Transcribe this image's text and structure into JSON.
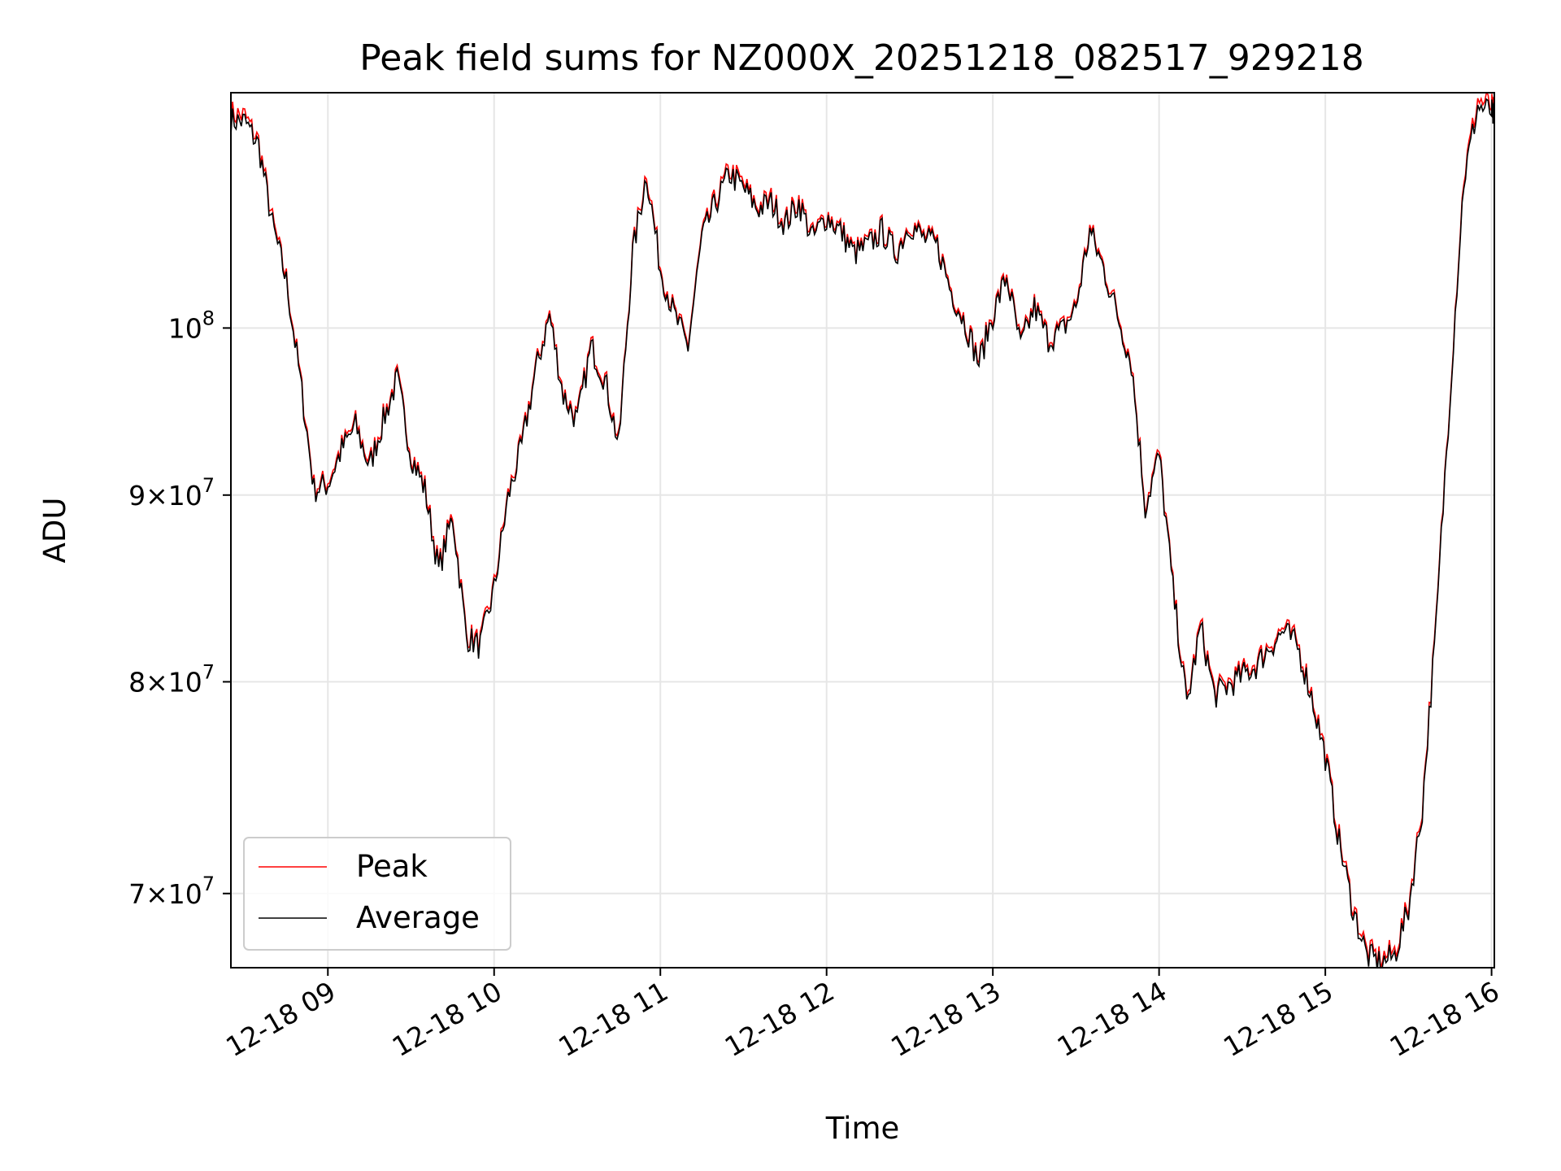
{
  "chart_data": {
    "type": "line",
    "title": "Peak field sums for NZ000X_20251218_082517_929218",
    "xlabel": "Time",
    "ylabel": "ADU",
    "yscale": "log",
    "grid": true,
    "legend_position": "lower-left",
    "xlim": [
      "2025-12-18 08:25",
      "2025-12-18 16:01"
    ],
    "ylim": [
      66800000,
      116000000
    ],
    "x_ticks": [
      "12-18 09",
      "12-18 10",
      "12-18 11",
      "12-18 12",
      "12-18 13",
      "12-18 14",
      "12-18 15",
      "12-18 16"
    ],
    "y_ticks": [
      {
        "value": 70000000,
        "base": "7",
        "sep": "×",
        "exp_base": "10",
        "exp": "7"
      },
      {
        "value": 80000000,
        "base": "8",
        "sep": "×",
        "exp_base": "10",
        "exp": "7"
      },
      {
        "value": 90000000,
        "base": "9",
        "sep": "×",
        "exp_base": "10",
        "exp": "7"
      },
      {
        "value": 100000000,
        "base": "",
        "sep": "",
        "exp_base": "10",
        "exp": "8"
      }
    ],
    "colors": {
      "Peak": "#ff0000",
      "Average": "#000000"
    },
    "series": [
      {
        "name": "Peak",
        "color": "#ff0000",
        "points": [
          [
            "2025-12-18 08:25",
            114.5
          ],
          [
            "2025-12-18 08:30",
            114.3
          ],
          [
            "2025-12-18 08:35",
            112.5
          ],
          [
            "2025-12-18 08:40",
            107.0
          ],
          [
            "2025-12-18 08:45",
            103.2
          ],
          [
            "2025-12-18 08:50",
            97.0
          ],
          [
            "2025-12-18 08:55",
            90.5
          ],
          [
            "2025-12-18 09:00",
            90.8
          ],
          [
            "2025-12-18 09:05",
            92.8
          ],
          [
            "2025-12-18 09:10",
            94.2
          ],
          [
            "2025-12-18 09:15",
            91.8
          ],
          [
            "2025-12-18 09:20",
            94.5
          ],
          [
            "2025-12-18 09:25",
            97.0
          ],
          [
            "2025-12-18 09:30",
            92.5
          ],
          [
            "2025-12-18 09:35",
            90.5
          ],
          [
            "2025-12-18 09:40",
            86.0
          ],
          [
            "2025-12-18 09:45",
            89.0
          ],
          [
            "2025-12-18 09:50",
            82.5
          ],
          [
            "2025-12-18 09:55",
            82.0
          ],
          [
            "2025-12-18 10:00",
            85.0
          ],
          [
            "2025-12-18 10:05",
            90.0
          ],
          [
            "2025-12-18 10:10",
            93.0
          ],
          [
            "2025-12-18 10:15",
            97.5
          ],
          [
            "2025-12-18 10:20",
            101.0
          ],
          [
            "2025-12-18 10:25",
            96.0
          ],
          [
            "2025-12-18 10:30",
            94.5
          ],
          [
            "2025-12-18 10:35",
            99.0
          ],
          [
            "2025-12-18 10:40",
            97.0
          ],
          [
            "2025-12-18 10:45",
            93.0
          ],
          [
            "2025-12-18 10:50",
            105.0
          ],
          [
            "2025-12-18 10:55",
            110.5
          ],
          [
            "2025-12-18 11:00",
            104.0
          ],
          [
            "2025-12-18 11:05",
            101.0
          ],
          [
            "2025-12-18 11:10",
            99.0
          ],
          [
            "2025-12-18 11:15",
            106.0
          ],
          [
            "2025-12-18 11:20",
            108.5
          ],
          [
            "2025-12-18 11:25",
            110.5
          ],
          [
            "2025-12-18 11:30",
            109.5
          ],
          [
            "2025-12-18 11:35",
            108.0
          ],
          [
            "2025-12-18 11:40",
            108.5
          ],
          [
            "2025-12-18 11:45",
            107.0
          ],
          [
            "2025-12-18 11:50",
            108.5
          ],
          [
            "2025-12-18 11:55",
            106.0
          ],
          [
            "2025-12-18 12:00",
            107.5
          ],
          [
            "2025-12-18 12:05",
            106.5
          ],
          [
            "2025-12-18 12:10",
            105.0
          ],
          [
            "2025-12-18 12:15",
            105.5
          ],
          [
            "2025-12-18 12:20",
            106.5
          ],
          [
            "2025-12-18 12:25",
            105.0
          ],
          [
            "2025-12-18 12:30",
            107.0
          ],
          [
            "2025-12-18 12:35",
            106.0
          ],
          [
            "2025-12-18 12:40",
            105.5
          ],
          [
            "2025-12-18 12:45",
            102.5
          ],
          [
            "2025-12-18 12:50",
            100.5
          ],
          [
            "2025-12-18 12:55",
            98.0
          ],
          [
            "2025-12-18 13:00",
            101.0
          ],
          [
            "2025-12-18 13:05",
            103.5
          ],
          [
            "2025-12-18 13:10",
            99.0
          ],
          [
            "2025-12-18 13:15",
            101.5
          ],
          [
            "2025-12-18 13:20",
            99.5
          ],
          [
            "2025-12-18 13:25",
            100.0
          ],
          [
            "2025-12-18 13:30",
            101.5
          ],
          [
            "2025-12-18 13:35",
            106.5
          ],
          [
            "2025-12-18 13:40",
            104.0
          ],
          [
            "2025-12-18 13:45",
            101.0
          ],
          [
            "2025-12-18 13:50",
            98.0
          ],
          [
            "2025-12-18 13:55",
            89.5
          ],
          [
            "2025-12-18 14:00",
            92.5
          ],
          [
            "2025-12-18 14:05",
            85.0
          ],
          [
            "2025-12-18 14:10",
            79.0
          ],
          [
            "2025-12-18 14:15",
            83.0
          ],
          [
            "2025-12-18 14:20",
            79.5
          ],
          [
            "2025-12-18 14:25",
            80.0
          ],
          [
            "2025-12-18 14:30",
            80.5
          ],
          [
            "2025-12-18 14:35",
            81.0
          ],
          [
            "2025-12-18 14:40",
            82.0
          ],
          [
            "2025-12-18 14:45",
            82.8
          ],
          [
            "2025-12-18 14:50",
            82.0
          ],
          [
            "2025-12-18 14:55",
            79.5
          ],
          [
            "2025-12-18 15:00",
            76.5
          ],
          [
            "2025-12-18 15:05",
            72.5
          ],
          [
            "2025-12-18 15:10",
            69.5
          ],
          [
            "2025-12-18 15:15",
            67.5
          ],
          [
            "2025-12-18 15:20",
            67.2
          ],
          [
            "2025-12-18 15:25",
            67.5
          ],
          [
            "2025-12-18 15:30",
            69.5
          ],
          [
            "2025-12-18 15:35",
            74.0
          ],
          [
            "2025-12-18 15:40",
            83.0
          ],
          [
            "2025-12-18 15:45",
            96.0
          ],
          [
            "2025-12-18 15:50",
            110.0
          ],
          [
            "2025-12-18 15:55",
            115.5
          ],
          [
            "2025-12-18 16:00",
            115.0
          ],
          [
            "2025-12-18 16:01",
            114.5
          ]
        ]
      },
      {
        "name": "Average",
        "color": "#000000",
        "points": [
          [
            "2025-12-18 08:25",
            114.0
          ],
          [
            "2025-12-18 08:30",
            113.9
          ],
          [
            "2025-12-18 08:35",
            112.2
          ],
          [
            "2025-12-18 08:40",
            106.7
          ],
          [
            "2025-12-18 08:45",
            103.0
          ],
          [
            "2025-12-18 08:50",
            96.8
          ],
          [
            "2025-12-18 08:55",
            90.3
          ],
          [
            "2025-12-18 09:00",
            90.6
          ],
          [
            "2025-12-18 09:05",
            92.6
          ],
          [
            "2025-12-18 09:10",
            94.0
          ],
          [
            "2025-12-18 09:15",
            91.6
          ],
          [
            "2025-12-18 09:20",
            94.3
          ],
          [
            "2025-12-18 09:25",
            96.8
          ],
          [
            "2025-12-18 09:30",
            92.3
          ],
          [
            "2025-12-18 09:35",
            90.3
          ],
          [
            "2025-12-18 09:40",
            85.8
          ],
          [
            "2025-12-18 09:45",
            88.8
          ],
          [
            "2025-12-18 09:50",
            82.3
          ],
          [
            "2025-12-18 09:55",
            81.8
          ],
          [
            "2025-12-18 10:00",
            84.8
          ],
          [
            "2025-12-18 10:05",
            89.8
          ],
          [
            "2025-12-18 10:10",
            92.8
          ],
          [
            "2025-12-18 10:15",
            97.3
          ],
          [
            "2025-12-18 10:20",
            100.8
          ],
          [
            "2025-12-18 10:25",
            95.8
          ],
          [
            "2025-12-18 10:30",
            94.3
          ],
          [
            "2025-12-18 10:35",
            98.8
          ],
          [
            "2025-12-18 10:40",
            96.8
          ],
          [
            "2025-12-18 10:45",
            92.8
          ],
          [
            "2025-12-18 10:50",
            104.8
          ],
          [
            "2025-12-18 10:55",
            110.2
          ],
          [
            "2025-12-18 11:00",
            103.8
          ],
          [
            "2025-12-18 11:05",
            100.8
          ],
          [
            "2025-12-18 11:10",
            98.8
          ],
          [
            "2025-12-18 11:15",
            105.8
          ],
          [
            "2025-12-18 11:20",
            108.2
          ],
          [
            "2025-12-18 11:25",
            110.2
          ],
          [
            "2025-12-18 11:30",
            109.2
          ],
          [
            "2025-12-18 11:35",
            107.8
          ],
          [
            "2025-12-18 11:40",
            108.2
          ],
          [
            "2025-12-18 11:45",
            106.8
          ],
          [
            "2025-12-18 11:50",
            108.2
          ],
          [
            "2025-12-18 11:55",
            105.8
          ],
          [
            "2025-12-18 12:00",
            107.3
          ],
          [
            "2025-12-18 12:05",
            106.3
          ],
          [
            "2025-12-18 12:10",
            104.8
          ],
          [
            "2025-12-18 12:15",
            105.3
          ],
          [
            "2025-12-18 12:20",
            106.3
          ],
          [
            "2025-12-18 12:25",
            104.8
          ],
          [
            "2025-12-18 12:30",
            106.8
          ],
          [
            "2025-12-18 12:35",
            105.8
          ],
          [
            "2025-12-18 12:40",
            105.3
          ],
          [
            "2025-12-18 12:45",
            102.3
          ],
          [
            "2025-12-18 12:50",
            100.3
          ],
          [
            "2025-12-18 12:55",
            97.8
          ],
          [
            "2025-12-18 13:00",
            100.8
          ],
          [
            "2025-12-18 13:05",
            103.3
          ],
          [
            "2025-12-18 13:10",
            98.8
          ],
          [
            "2025-12-18 13:15",
            101.3
          ],
          [
            "2025-12-18 13:20",
            99.3
          ],
          [
            "2025-12-18 13:25",
            99.8
          ],
          [
            "2025-12-18 13:30",
            101.3
          ],
          [
            "2025-12-18 13:35",
            106.3
          ],
          [
            "2025-12-18 13:40",
            103.8
          ],
          [
            "2025-12-18 13:45",
            100.8
          ],
          [
            "2025-12-18 13:50",
            97.8
          ],
          [
            "2025-12-18 13:55",
            89.3
          ],
          [
            "2025-12-18 14:00",
            92.3
          ],
          [
            "2025-12-18 14:05",
            84.8
          ],
          [
            "2025-12-18 14:10",
            78.8
          ],
          [
            "2025-12-18 14:15",
            82.8
          ],
          [
            "2025-12-18 14:20",
            79.3
          ],
          [
            "2025-12-18 14:25",
            79.8
          ],
          [
            "2025-12-18 14:30",
            80.3
          ],
          [
            "2025-12-18 14:35",
            80.8
          ],
          [
            "2025-12-18 14:40",
            81.8
          ],
          [
            "2025-12-18 14:45",
            82.6
          ],
          [
            "2025-12-18 14:50",
            81.8
          ],
          [
            "2025-12-18 14:55",
            79.3
          ],
          [
            "2025-12-18 15:00",
            76.3
          ],
          [
            "2025-12-18 15:05",
            72.3
          ],
          [
            "2025-12-18 15:10",
            69.3
          ],
          [
            "2025-12-18 15:15",
            67.3
          ],
          [
            "2025-12-18 15:20",
            67.0
          ],
          [
            "2025-12-18 15:25",
            67.3
          ],
          [
            "2025-12-18 15:30",
            69.3
          ],
          [
            "2025-12-18 15:35",
            73.8
          ],
          [
            "2025-12-18 15:40",
            82.8
          ],
          [
            "2025-12-18 15:45",
            95.8
          ],
          [
            "2025-12-18 15:50",
            109.7
          ],
          [
            "2025-12-18 15:55",
            115.0
          ],
          [
            "2025-12-18 16:00",
            114.6
          ],
          [
            "2025-12-18 16:01",
            114.0
          ]
        ]
      }
    ],
    "y_value_unit": "millions"
  }
}
